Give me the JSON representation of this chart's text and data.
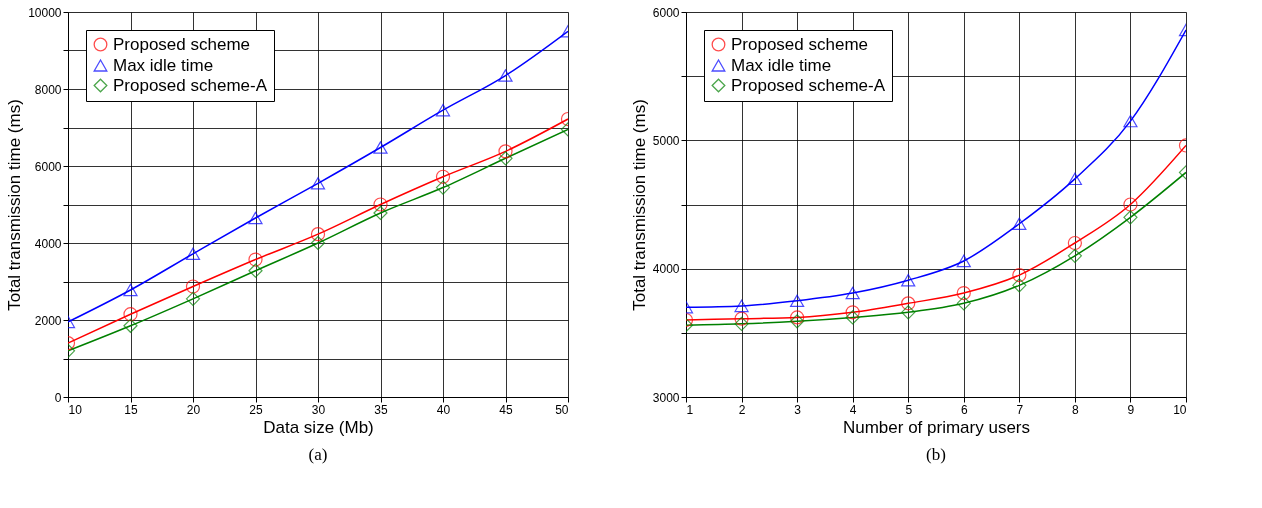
{
  "chart_data": [
    {
      "type": "line",
      "xlabel": "Data size (Mb)",
      "ylabel": "Total transmission time (ms)",
      "annotations": [
        "(a)"
      ],
      "x": [
        10,
        15,
        20,
        25,
        30,
        35,
        40,
        45,
        50
      ],
      "series": [
        {
          "name": "Proposed scheme",
          "color": "#ff0000",
          "marker": "circle",
          "values": [
            1400,
            2150,
            2870,
            3570,
            4230,
            5000,
            5720,
            6380,
            7220
          ]
        },
        {
          "name": "Max idle time",
          "color": "#0000ff",
          "marker": "triangle",
          "values": [
            1950,
            2780,
            3720,
            4650,
            5550,
            6480,
            7450,
            8350,
            9500
          ]
        },
        {
          "name": "Proposed scheme-A",
          "color": "#008000",
          "marker": "diamond",
          "values": [
            1200,
            1850,
            2550,
            3280,
            4000,
            4780,
            5440,
            6200,
            6950
          ]
        }
      ],
      "xlim": [
        10,
        50
      ],
      "xticks": [
        10,
        15,
        20,
        25,
        30,
        35,
        40,
        45,
        50
      ],
      "ylim": [
        0,
        10000
      ],
      "yticks": [
        0,
        {
          "value": 1000,
          "label": null
        },
        2000,
        {
          "value": 3000,
          "label": null
        },
        4000,
        {
          "value": 5000,
          "label": null
        },
        6000,
        {
          "value": 7000,
          "label": null
        },
        8000,
        {
          "value": 9000,
          "label": null
        },
        10000
      ],
      "grid": true,
      "legend": "top left",
      "line_style": "solid"
    },
    {
      "type": "line",
      "xlabel": "Number of primary users",
      "ylabel": "Total transmission time (ms)",
      "annotations": [
        "(b)"
      ],
      "x": [
        1,
        2,
        3,
        4,
        5,
        6,
        7,
        8,
        9,
        10
      ],
      "series": [
        {
          "name": "Proposed scheme",
          "color": "#ff0000",
          "marker": "circle",
          "values": [
            3600,
            3610,
            3620,
            3660,
            3730,
            3810,
            3950,
            4200,
            4500,
            4960
          ]
        },
        {
          "name": "Max idle time",
          "color": "#0000ff",
          "marker": "triangle",
          "values": [
            3700,
            3710,
            3750,
            3810,
            3910,
            4060,
            4350,
            4700,
            5150,
            5860
          ]
        },
        {
          "name": "Proposed scheme-A",
          "color": "#008000",
          "marker": "diamond",
          "values": [
            3560,
            3570,
            3590,
            3620,
            3660,
            3730,
            3870,
            4100,
            4400,
            4750
          ]
        }
      ],
      "xlim": [
        1,
        10
      ],
      "xticks": [
        1,
        2,
        3,
        4,
        5,
        6,
        7,
        8,
        9,
        10
      ],
      "ylim": [
        3000,
        6000
      ],
      "yticks": [
        3000,
        {
          "value": 3500,
          "label": null
        },
        4000,
        {
          "value": 4500,
          "label": null
        },
        5000,
        {
          "value": 5500,
          "label": null
        },
        6000
      ],
      "grid": true,
      "legend": "top left",
      "line_style": "solid"
    }
  ]
}
